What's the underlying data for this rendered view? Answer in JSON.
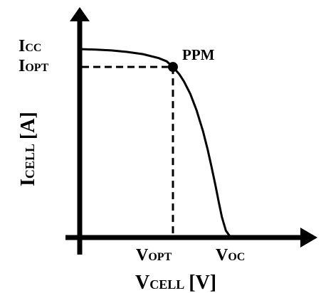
{
  "chart_data": {
    "type": "line",
    "title": "",
    "xlabel": {
      "main": "V",
      "sub": "CELL",
      "unit": "[V]"
    },
    "ylabel": {
      "main": "I",
      "sub": "CELL",
      "unit": "[A]"
    },
    "y_labels": {
      "isc": {
        "main": "I",
        "sub": "CC"
      },
      "iopt": {
        "main": "I",
        "sub": "OPT"
      }
    },
    "x_labels": {
      "vopt": {
        "main": "V",
        "sub": "OPT"
      },
      "voc": {
        "main": "V",
        "sub": "OC"
      }
    },
    "point_label": "PPM",
    "xlim": [
      0,
      1
    ],
    "ylim": [
      0,
      1
    ],
    "mpp": {
      "x": 0.59,
      "y": 0.905
    },
    "series": [
      {
        "x": [
          0.0,
          0.1,
          0.2,
          0.3,
          0.4,
          0.5,
          0.55,
          0.59,
          0.63,
          0.66,
          0.7,
          0.74,
          0.78,
          0.81,
          0.835,
          0.86,
          0.88,
          0.9,
          0.925,
          0.95,
          0.97
        ],
        "y": [
          1.0,
          0.997,
          0.993,
          0.985,
          0.973,
          0.952,
          0.935,
          0.905,
          0.867,
          0.828,
          0.762,
          0.674,
          0.565,
          0.466,
          0.372,
          0.273,
          0.188,
          0.108,
          0.037,
          0.007,
          0.0
        ]
      }
    ]
  }
}
